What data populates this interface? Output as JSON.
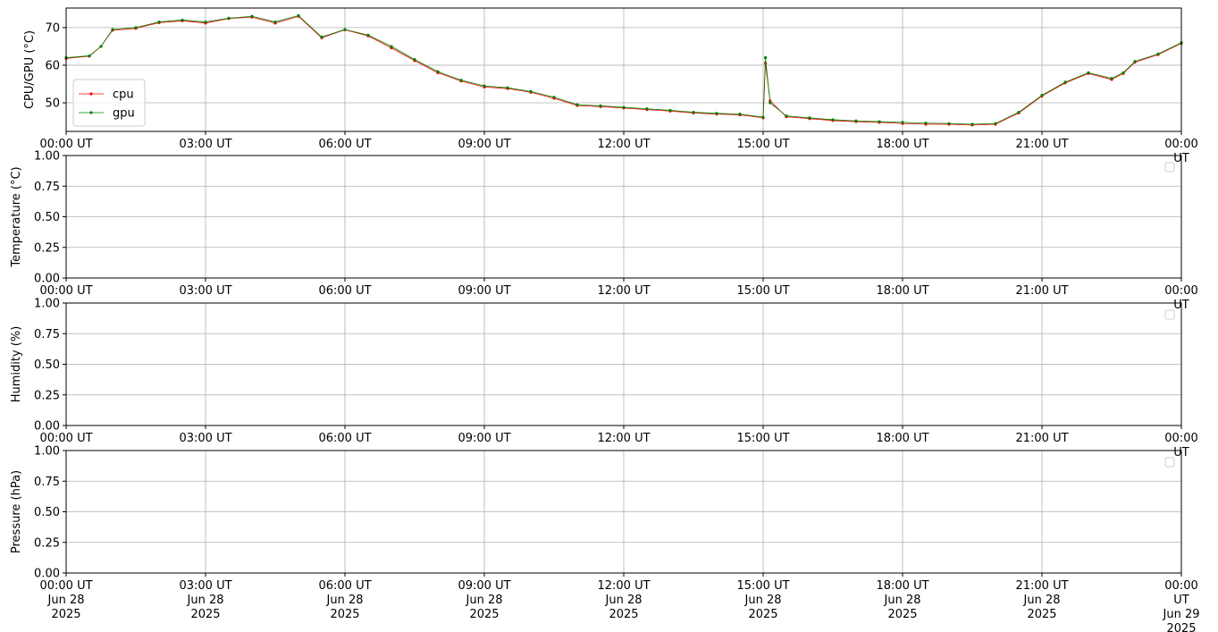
{
  "chart_data": [
    {
      "type": "line",
      "ylabel": "CPU/GPU (°C)",
      "xlim": [
        0,
        24
      ],
      "ylim": [
        42.4,
        75.2
      ],
      "yticks": [
        50,
        60,
        70
      ],
      "xticks": [
        {
          "value": 0,
          "label": "00:00 UT"
        },
        {
          "value": 3,
          "label": "03:00 UT"
        },
        {
          "value": 6,
          "label": "06:00 UT"
        },
        {
          "value": 9,
          "label": "09:00 UT"
        },
        {
          "value": 12,
          "label": "12:00 UT"
        },
        {
          "value": 15,
          "label": "15:00 UT"
        },
        {
          "value": 18,
          "label": "18:00 UT"
        },
        {
          "value": 21,
          "label": "21:00 UT"
        },
        {
          "value": 24,
          "label": "00:00 UT"
        }
      ],
      "grid": true,
      "legend": "lower left",
      "x": [
        0,
        0.5,
        0.75,
        1,
        1.5,
        2,
        2.5,
        3,
        3.5,
        4,
        4.5,
        5,
        5.5,
        6,
        6.5,
        7,
        7.5,
        8,
        8.5,
        9,
        9.5,
        10,
        10.5,
        11,
        11.5,
        12,
        12.5,
        13,
        13.5,
        14,
        14.5,
        15,
        15.05,
        15.15,
        15.5,
        16,
        16.5,
        17,
        17.5,
        18,
        18.5,
        19,
        19.5,
        20,
        20.5,
        21,
        21.5,
        22,
        22.5,
        22.75,
        23,
        23.5,
        24
      ],
      "series": [
        {
          "name": "cpu",
          "color": "#ff0000",
          "values": [
            61.8,
            62.4,
            65,
            69.3,
            69.8,
            71.3,
            71.8,
            71.2,
            72.4,
            72.8,
            71.2,
            73,
            67.3,
            69.4,
            67.8,
            64.6,
            61.2,
            58,
            55.8,
            54.2,
            53.8,
            52.8,
            51.2,
            49.3,
            49,
            48.6,
            48.2,
            47.8,
            47.3,
            47,
            46.8,
            46,
            60.5,
            50.5,
            46.3,
            45.8,
            45.3,
            45,
            44.8,
            44.5,
            44.3,
            44.3,
            44.1,
            44.3,
            47.3,
            51.8,
            55.3,
            57.8,
            56.2,
            57.8,
            60.8,
            62.8,
            65.8
          ]
        },
        {
          "name": "gpu",
          "color": "#008000",
          "values": [
            62,
            62.5,
            65,
            69.5,
            70,
            71.5,
            72,
            71.5,
            72.5,
            73,
            71.5,
            73.2,
            67.5,
            69.5,
            68,
            65,
            61.5,
            58.3,
            56,
            54.5,
            54,
            53,
            51.5,
            49.5,
            49.2,
            48.8,
            48.4,
            48,
            47.5,
            47.2,
            47,
            46.2,
            62,
            50,
            46.5,
            46,
            45.5,
            45.2,
            45,
            44.8,
            44.6,
            44.5,
            44.3,
            44.5,
            47.5,
            52,
            55.5,
            58,
            56.5,
            58,
            61,
            63,
            66
          ]
        }
      ]
    },
    {
      "type": "line",
      "ylabel": "Temperature (°C)",
      "xlim": [
        0,
        24
      ],
      "ylim": [
        0,
        1
      ],
      "yticks": [
        {
          "value": 0,
          "label": "0.00"
        },
        {
          "value": 0.25,
          "label": "0.25"
        },
        {
          "value": 0.5,
          "label": "0.50"
        },
        {
          "value": 0.75,
          "label": "0.75"
        },
        {
          "value": 1,
          "label": "1.00"
        }
      ],
      "xticks": [
        {
          "value": 0,
          "label": "00:00 UT"
        },
        {
          "value": 3,
          "label": "03:00 UT"
        },
        {
          "value": 6,
          "label": "06:00 UT"
        },
        {
          "value": 9,
          "label": "09:00 UT"
        },
        {
          "value": 12,
          "label": "12:00 UT"
        },
        {
          "value": 15,
          "label": "15:00 UT"
        },
        {
          "value": 18,
          "label": "18:00 UT"
        },
        {
          "value": 21,
          "label": "21:00 UT"
        },
        {
          "value": 24,
          "label": "00:00 UT"
        }
      ],
      "grid": true,
      "legend": "upper right",
      "series": []
    },
    {
      "type": "line",
      "ylabel": "Humidity (%)",
      "xlim": [
        0,
        24
      ],
      "ylim": [
        0,
        1
      ],
      "yticks": [
        {
          "value": 0,
          "label": "0.00"
        },
        {
          "value": 0.25,
          "label": "0.25"
        },
        {
          "value": 0.5,
          "label": "0.50"
        },
        {
          "value": 0.75,
          "label": "0.75"
        },
        {
          "value": 1,
          "label": "1.00"
        }
      ],
      "xticks": [
        {
          "value": 0,
          "label": "00:00 UT"
        },
        {
          "value": 3,
          "label": "03:00 UT"
        },
        {
          "value": 6,
          "label": "06:00 UT"
        },
        {
          "value": 9,
          "label": "09:00 UT"
        },
        {
          "value": 12,
          "label": "12:00 UT"
        },
        {
          "value": 15,
          "label": "15:00 UT"
        },
        {
          "value": 18,
          "label": "18:00 UT"
        },
        {
          "value": 21,
          "label": "21:00 UT"
        },
        {
          "value": 24,
          "label": "00:00 UT"
        }
      ],
      "grid": true,
      "legend": "upper right",
      "series": []
    },
    {
      "type": "line",
      "ylabel": "Pressure (hPa)",
      "xlim": [
        0,
        24
      ],
      "ylim": [
        0,
        1
      ],
      "yticks": [
        {
          "value": 0,
          "label": "0.00"
        },
        {
          "value": 0.25,
          "label": "0.25"
        },
        {
          "value": 0.5,
          "label": "0.50"
        },
        {
          "value": 0.75,
          "label": "0.75"
        },
        {
          "value": 1,
          "label": "1.00"
        }
      ],
      "xticks": [
        {
          "value": 0,
          "label": "00:00 UT\nJun 28\n2025"
        },
        {
          "value": 3,
          "label": "03:00 UT\nJun 28\n2025"
        },
        {
          "value": 6,
          "label": "06:00 UT\nJun 28\n2025"
        },
        {
          "value": 9,
          "label": "09:00 UT\nJun 28\n2025"
        },
        {
          "value": 12,
          "label": "12:00 UT\nJun 28\n2025"
        },
        {
          "value": 15,
          "label": "15:00 UT\nJun 28\n2025"
        },
        {
          "value": 18,
          "label": "18:00 UT\nJun 28\n2025"
        },
        {
          "value": 21,
          "label": "21:00 UT\nJun 28\n2025"
        },
        {
          "value": 24,
          "label": "00:00 UT\nJun 29\n2025"
        }
      ],
      "grid": true,
      "legend": "upper right",
      "series": []
    }
  ]
}
